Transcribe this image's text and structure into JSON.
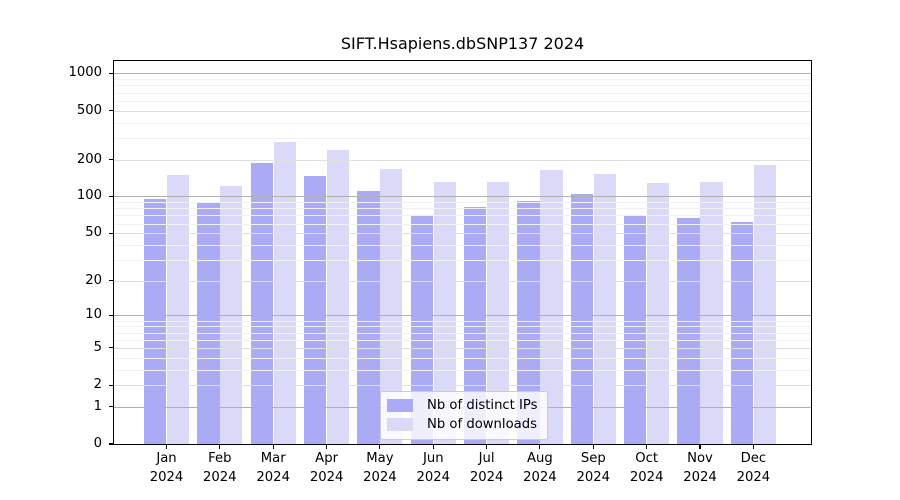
{
  "chart_data": {
    "type": "bar",
    "title": "SIFT.Hsapiens.dbSNP137 2024",
    "y_scale": "log1p",
    "ylim": [
      0,
      1260
    ],
    "y_ticks": [
      0,
      1,
      2,
      5,
      10,
      20,
      50,
      100,
      200,
      500,
      1000
    ],
    "grid": true,
    "legend_position": "lower center",
    "year_label": "2024",
    "categories": [
      "Jan",
      "Feb",
      "Mar",
      "Apr",
      "May",
      "Jun",
      "Jul",
      "Aug",
      "Sep",
      "Oct",
      "Nov",
      "Dec"
    ],
    "series": [
      {
        "name": "Nb of distinct IPs",
        "color": "#aaaaf5",
        "values": [
          96,
          90,
          189,
          148,
          110,
          70,
          82,
          92,
          105,
          69,
          67,
          62
        ]
      },
      {
        "name": "Nb of downloads",
        "color": "#dadaf8",
        "values": [
          150,
          122,
          280,
          238,
          167,
          132,
          132,
          166,
          153,
          128,
          132,
          180
        ]
      }
    ],
    "colors": {
      "grid_major": "#b0b0b0",
      "grid_mid": "#e0e0e0",
      "grid_minor": "#f1f1f1",
      "axis": "#000000",
      "background": "#ffffff"
    }
  }
}
